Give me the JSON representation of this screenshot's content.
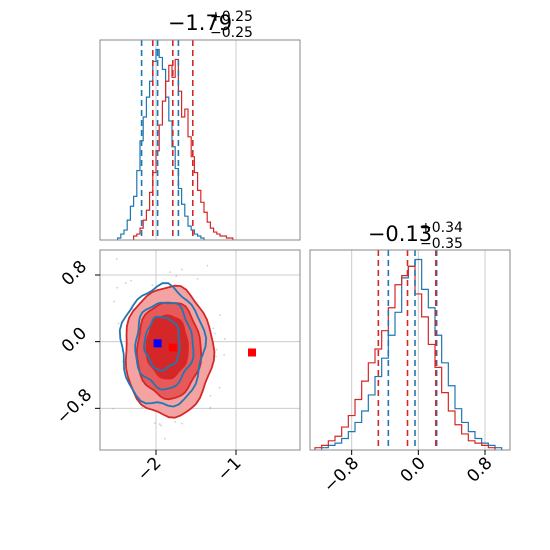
{
  "colors": {
    "series_a": "#1f77b4",
    "series_b": "#d62728",
    "fill_outer": "#f4a3a3",
    "fill_mid": "#e85a5a",
    "fill_inner": "#d62728",
    "grid": "#cccccc",
    "marker_blue": "#0000ff",
    "marker_red": "#ff0000"
  },
  "chart_data": [
    {
      "type": "histogram",
      "panel": "x-marginal",
      "title": {
        "value": "−1.79",
        "plus": "+0.25",
        "minus": "−0.25"
      },
      "xlim": [
        -2.7,
        -0.2
      ],
      "quantile_lines": {
        "series_a": [
          -2.18,
          -1.98,
          -1.72
        ],
        "series_b": [
          -2.04,
          -1.79,
          -1.54
        ]
      },
      "series": [
        {
          "color_key": "series_a",
          "bins": [
            -2.46,
            -2.42,
            -2.38,
            -2.34,
            -2.3,
            -2.26,
            -2.22,
            -2.18,
            -2.14,
            -2.1,
            -2.06,
            -2.02,
            -1.98,
            -1.94,
            -1.9,
            -1.86,
            -1.82,
            -1.78,
            -1.74,
            -1.7,
            -1.66,
            -1.62,
            -1.58,
            -1.54,
            -1.5,
            -1.46,
            -1.42
          ],
          "values": [
            1,
            3,
            5,
            10,
            17,
            22,
            35,
            50,
            62,
            72,
            80,
            90,
            96,
            92,
            86,
            72,
            60,
            47,
            36,
            26,
            18,
            12,
            7,
            5,
            3,
            2,
            1
          ]
        },
        {
          "color_key": "series_b",
          "bins": [
            -2.26,
            -2.22,
            -2.18,
            -2.14,
            -2.1,
            -2.06,
            -2.02,
            -1.98,
            -1.94,
            -1.9,
            -1.86,
            -1.82,
            -1.78,
            -1.74,
            -1.7,
            -1.66,
            -1.62,
            -1.58,
            -1.54,
            -1.5,
            -1.46,
            -1.42,
            -1.38,
            -1.34,
            -1.3,
            -1.26,
            -1.22,
            -1.18,
            -1.14,
            -1.1,
            -1.06
          ],
          "values": [
            2,
            3,
            6,
            10,
            15,
            24,
            34,
            45,
            58,
            70,
            80,
            88,
            82,
            91,
            75,
            62,
            66,
            52,
            42,
            34,
            25,
            19,
            14,
            9,
            6,
            4,
            3,
            2,
            2,
            1,
            1
          ]
        }
      ]
    },
    {
      "type": "contour",
      "panel": "joint",
      "xlim": [
        -2.7,
        -0.2
      ],
      "ylim": [
        -1.3,
        1.1
      ],
      "xticks": [
        -2,
        -1
      ],
      "yticks": [
        -0.8,
        0.0,
        0.8
      ],
      "xtick_labels": [
        "−2",
        "−1"
      ],
      "ytick_labels": [
        "−0.8",
        "0.0",
        "0.8"
      ],
      "series_b_levels": [
        {
          "cx": -1.84,
          "cy": -0.12,
          "rx": 0.55,
          "ry": 0.78
        },
        {
          "cx": -1.84,
          "cy": -0.1,
          "rx": 0.4,
          "ry": 0.58
        },
        {
          "cx": -1.86,
          "cy": -0.06,
          "rx": 0.26,
          "ry": 0.38
        }
      ],
      "series_a_levels": [
        {
          "cx": -1.92,
          "cy": -0.06,
          "rx": 0.52,
          "ry": 0.72
        },
        {
          "cx": -1.9,
          "cy": -0.04,
          "rx": 0.36,
          "ry": 0.52
        },
        {
          "cx": -1.92,
          "cy": -0.02,
          "rx": 0.22,
          "ry": 0.32
        }
      ],
      "markers": [
        {
          "x": -1.98,
          "y": -0.02,
          "color_key": "marker_blue"
        },
        {
          "x": -1.79,
          "y": -0.07,
          "color_key": "marker_red"
        },
        {
          "x": -0.8,
          "y": -0.13,
          "color_key": "marker_red"
        }
      ]
    },
    {
      "type": "histogram",
      "panel": "y-marginal",
      "title": {
        "value": "−0.13",
        "plus": "+0.34",
        "minus": "−0.35"
      },
      "xlim": [
        -1.3,
        1.1
      ],
      "xticks": [
        -0.8,
        0.0,
        0.8
      ],
      "xtick_labels": [
        "−0.8",
        "0.0",
        "0.8"
      ],
      "quantile_lines": {
        "series_a": [
          -0.36,
          -0.04,
          0.22
        ],
        "series_b": [
          -0.48,
          -0.13,
          0.21
        ]
      },
      "series": [
        {
          "color_key": "series_a",
          "bins": [
            -1.12,
            -1.04,
            -0.96,
            -0.88,
            -0.8,
            -0.72,
            -0.64,
            -0.56,
            -0.48,
            -0.4,
            -0.32,
            -0.24,
            -0.16,
            -0.08,
            0.0,
            0.08,
            0.16,
            0.24,
            0.32,
            0.4,
            0.48,
            0.56,
            0.64,
            0.72,
            0.8,
            0.88,
            0.96
          ],
          "values": [
            1,
            2,
            3,
            5,
            8,
            12,
            17,
            24,
            32,
            40,
            50,
            60,
            75,
            80,
            83,
            70,
            62,
            50,
            38,
            28,
            18,
            12,
            8,
            5,
            3,
            2,
            1
          ]
        },
        {
          "color_key": "series_b",
          "bins": [
            -1.2,
            -1.12,
            -1.04,
            -0.96,
            -0.88,
            -0.8,
            -0.72,
            -0.64,
            -0.56,
            -0.48,
            -0.4,
            -0.32,
            -0.24,
            -0.16,
            -0.08,
            0.0,
            0.08,
            0.16,
            0.24,
            0.32,
            0.4,
            0.48,
            0.56,
            0.64,
            0.72,
            0.8,
            0.88
          ],
          "values": [
            1,
            2,
            4,
            6,
            10,
            15,
            22,
            30,
            38,
            44,
            52,
            62,
            72,
            76,
            80,
            68,
            58,
            46,
            36,
            25,
            17,
            11,
            7,
            4,
            3,
            2,
            1
          ]
        }
      ]
    }
  ]
}
